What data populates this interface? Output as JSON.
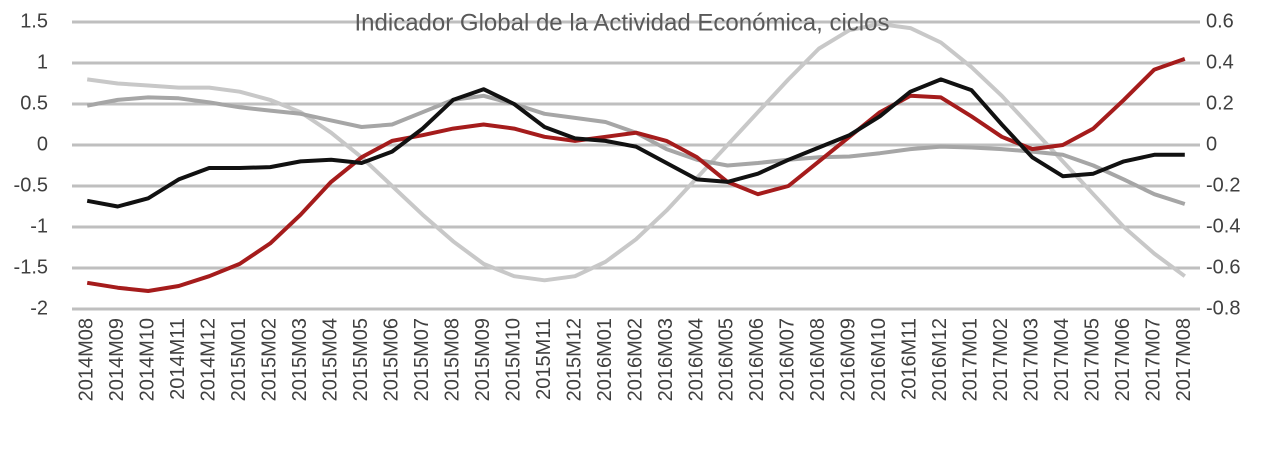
{
  "chart_data": {
    "type": "line",
    "title": "Indicador Global de la Actividad Económica, ciclos",
    "categories": [
      "2014M08",
      "2014M09",
      "2014M10",
      "2014M11",
      "2014M12",
      "2015M01",
      "2015M02",
      "2015M03",
      "2015M04",
      "2015M05",
      "2015M06",
      "2015M07",
      "2015M08",
      "2015M09",
      "2015M10",
      "2015M11",
      "2015M12",
      "2016M01",
      "2016M02",
      "2016M03",
      "2016M04",
      "2016M05",
      "2016M06",
      "2016M07",
      "2016M08",
      "2016M09",
      "2016M10",
      "2016M11",
      "2016M12",
      "2017M01",
      "2017M02",
      "2017M03",
      "2017M04",
      "2017M05",
      "2017M06",
      "2017M07",
      "2017M08"
    ],
    "ylim": [
      -2,
      1.5
    ],
    "yticks": [
      1.5,
      1,
      0.5,
      0,
      -0.5,
      -1,
      -1.5,
      -2
    ],
    "y2lim": [
      -0.8,
      0.6
    ],
    "y2ticks": [
      0.6,
      0.4,
      0.2,
      0,
      -0.2,
      -0.4,
      -0.6,
      -0.8
    ],
    "grid": true,
    "series": [
      {
        "color": "#c8c8c8",
        "axis": "y2",
        "values": [
          0.32,
          0.3,
          0.29,
          0.28,
          0.28,
          0.26,
          0.22,
          0.16,
          0.06,
          -0.06,
          -0.2,
          -0.34,
          -0.47,
          -0.58,
          -0.64,
          -0.66,
          -0.64,
          -0.57,
          -0.46,
          -0.32,
          -0.16,
          0.0,
          0.16,
          0.32,
          0.47,
          0.56,
          0.59,
          0.57,
          0.5,
          0.38,
          0.24,
          0.08,
          -0.08,
          -0.24,
          -0.4,
          -0.53,
          -0.64
        ]
      },
      {
        "color": "#a6a6a6",
        "values": [
          0.48,
          0.55,
          0.58,
          0.57,
          0.52,
          0.46,
          0.42,
          0.38,
          0.3,
          0.22,
          0.25,
          0.4,
          0.55,
          0.6,
          0.5,
          0.38,
          0.33,
          0.28,
          0.15,
          -0.05,
          -0.18,
          -0.25,
          -0.22,
          -0.18,
          -0.15,
          -0.14,
          -0.1,
          -0.05,
          -0.02,
          -0.03,
          -0.05,
          -0.08,
          -0.12,
          -0.25,
          -0.42,
          -0.6,
          -0.72
        ]
      },
      {
        "color": "#a51c1c",
        "values": [
          -1.68,
          -1.74,
          -1.78,
          -1.72,
          -1.6,
          -1.45,
          -1.2,
          -0.85,
          -0.45,
          -0.15,
          0.05,
          0.12,
          0.2,
          0.25,
          0.2,
          0.1,
          0.05,
          0.1,
          0.15,
          0.05,
          -0.15,
          -0.45,
          -0.6,
          -0.5,
          -0.2,
          0.1,
          0.4,
          0.6,
          0.58,
          0.35,
          0.1,
          -0.05,
          0.0,
          0.2,
          0.55,
          0.92,
          1.05
        ]
      },
      {
        "color": "#111111",
        "values": [
          -0.68,
          -0.75,
          -0.65,
          -0.42,
          -0.28,
          -0.28,
          -0.27,
          -0.2,
          -0.18,
          -0.22,
          -0.08,
          0.2,
          0.55,
          0.68,
          0.5,
          0.22,
          0.08,
          0.05,
          -0.02,
          -0.22,
          -0.42,
          -0.45,
          -0.35,
          -0.18,
          -0.03,
          0.12,
          0.35,
          0.65,
          0.8,
          0.67,
          0.25,
          -0.15,
          -0.38,
          -0.35,
          -0.2,
          -0.12,
          -0.12
        ]
      }
    ]
  }
}
